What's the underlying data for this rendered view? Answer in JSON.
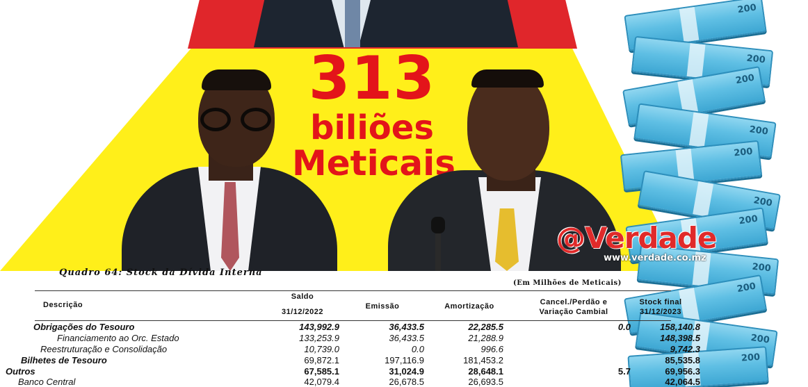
{
  "headline": {
    "amount": "313",
    "line1": "biliões",
    "line2": "Meticais"
  },
  "watermark": {
    "logo": "@Verdade",
    "url": "www.verdade.co.mz"
  },
  "banknote_denomination": "200",
  "table": {
    "title": "Quadro 64: Stock da Dívida Interna",
    "units": "(Em Milhões de Meticais)",
    "headers": {
      "descricao": "Descrição",
      "saldo_line1": "Saldo",
      "saldo_line2": "31/12/2022",
      "emissao": "Emissão",
      "amortizacao": "Amortização",
      "cancel_line1": "Cancel./Perdão e",
      "cancel_line2": "Variação Cambial",
      "stock_line1": "Stock final",
      "stock_line2": "31/12/2023"
    },
    "rows": [
      {
        "label": "Obrigações do Tesouro",
        "saldo": "143,992.9",
        "emissao": "36,433.5",
        "amortizacao": "22,285.5",
        "cancel": "0.0",
        "stock": "158,140.8"
      },
      {
        "label": "Financiamento ao Orc. Estado",
        "saldo": "133,253.9",
        "emissao": "36,433.5",
        "amortizacao": "21,288.9",
        "cancel": "",
        "stock": "148,398.5"
      },
      {
        "label": "Reestruturação e Consolidação",
        "saldo": "10,739.0",
        "emissao": "0.0",
        "amortizacao": "996.6",
        "cancel": "",
        "stock": "9,742.3"
      },
      {
        "label": "Bilhetes de Tesouro",
        "saldo": "69,872.1",
        "emissao": "197,116.9",
        "amortizacao": "181,453.2",
        "cancel": "",
        "stock": "85,535.8"
      },
      {
        "label": "Outros",
        "saldo": "67,585.1",
        "emissao": "31,024.9",
        "amortizacao": "28,648.1",
        "cancel": "5.7",
        "stock": "69,956.3"
      },
      {
        "label": "Banco Central",
        "saldo": "42,079.4",
        "emissao": "26,678.5",
        "amortizacao": "26,693.5",
        "cancel": "",
        "stock": "42,064.5"
      }
    ]
  }
}
